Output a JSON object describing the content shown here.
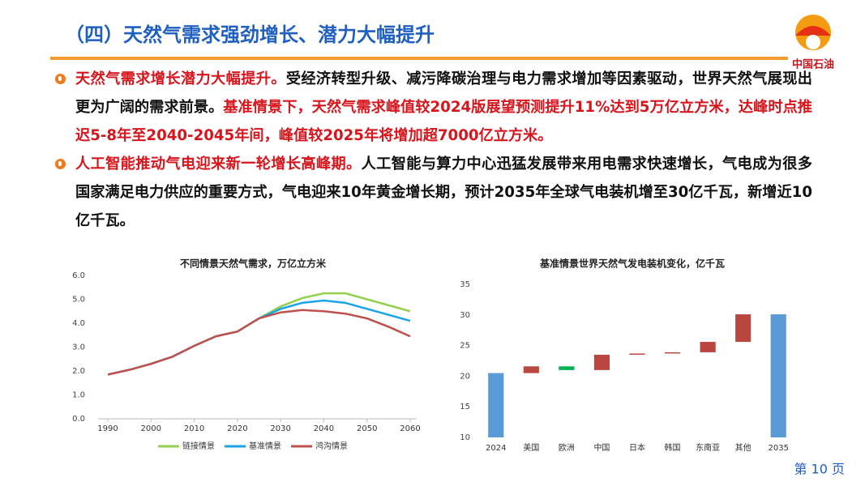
{
  "header": {
    "title": "（四）天然气需求强劲增长、潜力大幅提升",
    "logo_text": "中国石油",
    "title_color": "#1f5fbf",
    "rule_color": "#f39c34"
  },
  "bullets": [
    {
      "segments": [
        {
          "text": "天然气需求增长潜力大幅提升。",
          "color": "#d7151c"
        },
        {
          "text": "受经济转型升级、减污降碳治理与电力需求增加等因素驱动，世界天然气展现出更为广阔的需求前景。",
          "color": "#111111"
        },
        {
          "text": "基准情景下，天然气需求峰值较2024版展望预测提升11%达到5万亿立方米，达峰时点推迟5-8年至2040-2045年间，峰值较2025年将增加超7000亿立方米。",
          "color": "#d7151c"
        }
      ]
    },
    {
      "segments": [
        {
          "text": "人工智能推动气电迎来新一轮增长高峰期。",
          "color": "#d7151c"
        },
        {
          "text": "人工智能与算力中心迅猛发展带来用电需求快速增长，气电成为很多国家满足电力供应的重要方式，气电迎来10年黄金增长期，预计2035年全球气电装机增至30亿千瓦，新增近10亿千瓦。",
          "color": "#111111"
        }
      ]
    }
  ],
  "page_number": "第 10 页",
  "chart_data": [
    {
      "type": "line",
      "title": "不同情景天然气需求，万亿立方米",
      "x": [
        1990,
        1995,
        2000,
        2005,
        2010,
        2015,
        2020,
        2025,
        2030,
        2035,
        2040,
        2045,
        2050,
        2055,
        2060
      ],
      "series": [
        {
          "name": "链接情景",
          "color": "#92d050",
          "values": [
            1.85,
            2.05,
            2.3,
            2.6,
            3.05,
            3.45,
            3.65,
            4.2,
            4.7,
            5.05,
            5.25,
            5.25,
            5.0,
            4.75,
            4.5
          ]
        },
        {
          "name": "基准情景",
          "color": "#1aa3e8",
          "values": [
            1.85,
            2.05,
            2.3,
            2.6,
            3.05,
            3.45,
            3.65,
            4.2,
            4.6,
            4.85,
            4.95,
            4.85,
            4.6,
            4.35,
            4.1
          ]
        },
        {
          "name": "鸿沟情景",
          "color": "#c0504d",
          "values": [
            1.85,
            2.05,
            2.3,
            2.6,
            3.05,
            3.45,
            3.65,
            4.2,
            4.45,
            4.55,
            4.5,
            4.4,
            4.2,
            3.85,
            3.45
          ]
        }
      ],
      "xlim": [
        1990,
        2060
      ],
      "xticks": [
        1990,
        2000,
        2010,
        2020,
        2030,
        2040,
        2050,
        2060
      ],
      "ylim": [
        0,
        6
      ],
      "yticks": [
        {
          "value": 0,
          "label": "0.0"
        },
        {
          "value": 1,
          "label": "1.0"
        },
        {
          "value": 2,
          "label": "2.0"
        },
        {
          "value": 3,
          "label": "3.0"
        },
        {
          "value": 4,
          "label": "4.0"
        },
        {
          "value": 5,
          "label": "5.0"
        },
        {
          "value": 6,
          "label": "6.0"
        }
      ]
    },
    {
      "type": "waterfall",
      "title": "基准情景世界天然气发电装机变化，亿千瓦",
      "categories": [
        "2024",
        "美国",
        "欧洲",
        "中国",
        "日本",
        "韩国",
        "东南亚",
        "其他",
        "2035"
      ],
      "values": [
        20.5,
        1.1,
        -0.6,
        2.5,
        0.2,
        0.2,
        1.7,
        4.5,
        30.1
      ],
      "measure": [
        "absolute",
        "relative",
        "relative",
        "relative",
        "relative",
        "relative",
        "relative",
        "relative",
        "total"
      ],
      "total_color": "#5b9bd5",
      "increase_color": "#b9473f",
      "decrease_color": "#00b050",
      "ylim": [
        10,
        35
      ],
      "yticks": [
        10,
        15,
        20,
        25,
        30,
        35
      ]
    }
  ]
}
